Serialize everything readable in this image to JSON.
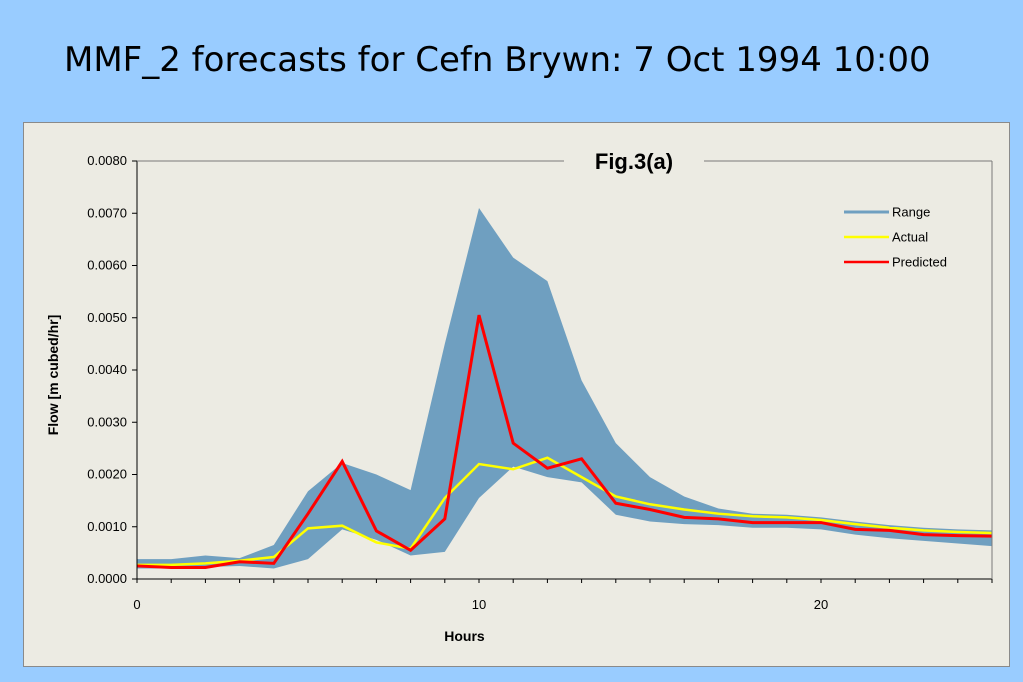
{
  "slide": {
    "title": "MMF_2 forecasts for Cefn Brywn: 7 Oct 1994 10:00"
  },
  "colors": {
    "background": "#99ccff",
    "panel": "#ecebe3",
    "range": "#6f9fc0",
    "actual": "#ffff00",
    "predicted": "#ff0000"
  },
  "chart_data": {
    "type": "line",
    "title": "Fig.3(a)",
    "xlabel": "Hours",
    "ylabel": "Flow [m cubed/hr]",
    "xlim": [
      0,
      25
    ],
    "ylim": [
      0,
      0.008
    ],
    "xticks": [
      0,
      10,
      20
    ],
    "xtick_labels": [
      "0",
      "10",
      "20"
    ],
    "yticks": [
      0,
      0.001,
      0.002,
      0.003,
      0.004,
      0.005,
      0.006,
      0.007,
      0.008
    ],
    "ytick_labels": [
      "0.0000",
      "0.0010",
      "0.0020",
      "0.0030",
      "0.0040",
      "0.0050",
      "0.0060",
      "0.0070",
      "0.0080"
    ],
    "grid": false,
    "legend_position": "top-right",
    "x": [
      0,
      1,
      2,
      3,
      4,
      5,
      6,
      7,
      8,
      9,
      10,
      11,
      12,
      13,
      14,
      15,
      16,
      17,
      18,
      19,
      20,
      21,
      22,
      23,
      24,
      25
    ],
    "series": [
      {
        "name": "Range",
        "kind": "band",
        "upper": [
          0.00038,
          0.00038,
          0.00045,
          0.0004,
          0.00065,
          0.00168,
          0.00222,
          0.002,
          0.0017,
          0.0045,
          0.0071,
          0.00615,
          0.0057,
          0.0038,
          0.0026,
          0.00195,
          0.00158,
          0.00135,
          0.00125,
          0.00123,
          0.00118,
          0.0011,
          0.00103,
          0.00098,
          0.00095,
          0.00093
        ],
        "lower": [
          0.0002,
          0.0002,
          0.00023,
          0.00025,
          0.0002,
          0.00038,
          0.00095,
          0.00075,
          0.00045,
          0.00052,
          0.00155,
          0.00215,
          0.00195,
          0.00185,
          0.00123,
          0.0011,
          0.00105,
          0.00103,
          0.00098,
          0.00098,
          0.00095,
          0.00085,
          0.00078,
          0.00073,
          0.00068,
          0.00063
        ]
      },
      {
        "name": "Actual",
        "values": [
          0.00027,
          0.00027,
          0.0003,
          0.00035,
          0.00042,
          0.00097,
          0.00102,
          0.0007,
          0.00058,
          0.00155,
          0.0022,
          0.0021,
          0.00232,
          0.00195,
          0.00158,
          0.00143,
          0.00133,
          0.00125,
          0.0012,
          0.00118,
          0.00113,
          0.00105,
          0.00098,
          0.00093,
          0.0009,
          0.00088
        ]
      },
      {
        "name": "Predicted",
        "values": [
          0.00025,
          0.00022,
          0.00022,
          0.00033,
          0.0003,
          0.00125,
          0.00225,
          0.00092,
          0.00055,
          0.00115,
          0.00505,
          0.0026,
          0.00212,
          0.0023,
          0.00145,
          0.00133,
          0.00118,
          0.00115,
          0.00108,
          0.00108,
          0.00108,
          0.00095,
          0.00093,
          0.00085,
          0.00083,
          0.00082
        ]
      }
    ]
  }
}
